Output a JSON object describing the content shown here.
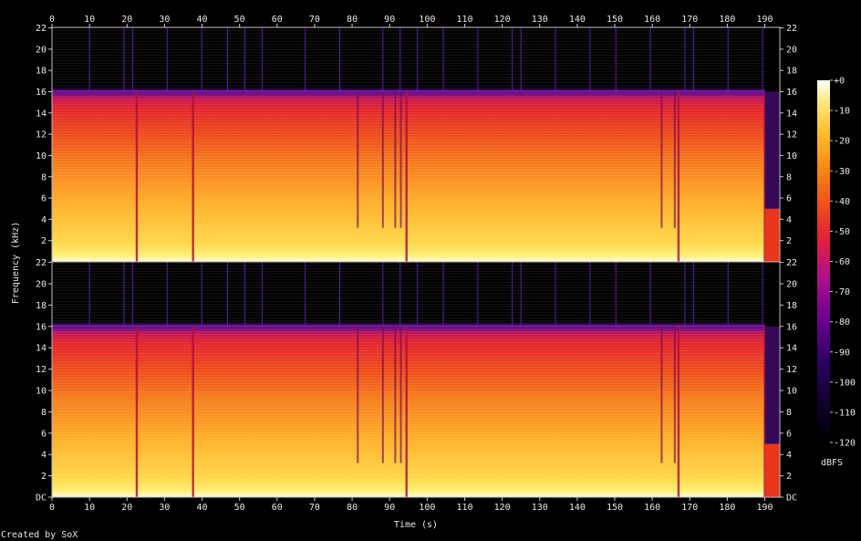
{
  "chart_data": {
    "type": "heatmap",
    "title": "",
    "xlabel": "Time (s)",
    "ylabel": "Frequency (kHz)",
    "x_ticks": [
      0,
      10,
      20,
      30,
      40,
      50,
      60,
      70,
      80,
      90,
      100,
      110,
      120,
      130,
      140,
      150,
      160,
      170,
      180,
      190
    ],
    "xlim": [
      0,
      194
    ],
    "y_ticks": [
      "DC",
      "2",
      "4",
      "6",
      "8",
      "10",
      "12",
      "14",
      "16",
      "18",
      "20",
      "22"
    ],
    "ylim": [
      0,
      22.05
    ],
    "channels": [
      "left",
      "right"
    ],
    "colorbar": {
      "label": "dBFS",
      "ticks": [
        "+0",
        "-10",
        "-20",
        "-30",
        "-40",
        "-50",
        "-60",
        "-70",
        "-80",
        "-90",
        "-100",
        "-110",
        "-120"
      ],
      "range": [
        -120,
        0
      ]
    },
    "cutoff_khz": 16,
    "gaps_s": [
      22.6,
      37.6,
      94.5,
      167.0,
      190.0
    ],
    "dropouts_s": [
      81.5,
      88.2,
      91.5,
      93.0,
      162.5,
      166.0
    ],
    "end_s": 190.0,
    "total_s": 194.0
  },
  "footer": {
    "credit": "Created by SoX"
  }
}
